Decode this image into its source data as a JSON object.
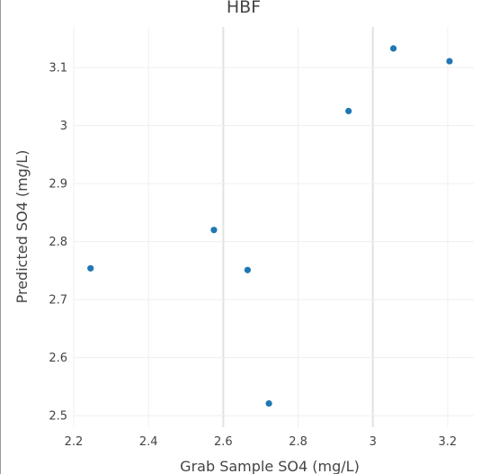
{
  "chart_data": {
    "type": "scatter",
    "title": "HBF",
    "xlabel": "Grab Sample SO4 (mg/L)",
    "ylabel": "Predicted SO4 (mg/L)",
    "xlim": [
      2.2,
      3.27
    ],
    "ylim": [
      2.48,
      3.17
    ],
    "xticks": [
      2.2,
      2.4,
      2.6,
      2.8,
      3,
      3.2
    ],
    "xtick_labels": [
      "2.2",
      "2.4",
      "2.6",
      "2.8",
      "3",
      "3.2"
    ],
    "yticks": [
      2.5,
      2.6,
      2.7,
      2.8,
      2.9,
      3,
      3.1
    ],
    "ytick_labels": [
      "2.5",
      "2.6",
      "2.7",
      "2.8",
      "2.9",
      "3",
      "3.1"
    ],
    "grid": true,
    "marker_color": "#1f77b4",
    "series": [
      {
        "x": [
          2.245,
          2.575,
          2.665,
          2.722,
          2.935,
          3.055,
          3.205
        ],
        "y": [
          2.754,
          2.82,
          2.751,
          2.521,
          3.025,
          3.133,
          3.111
        ]
      }
    ]
  }
}
